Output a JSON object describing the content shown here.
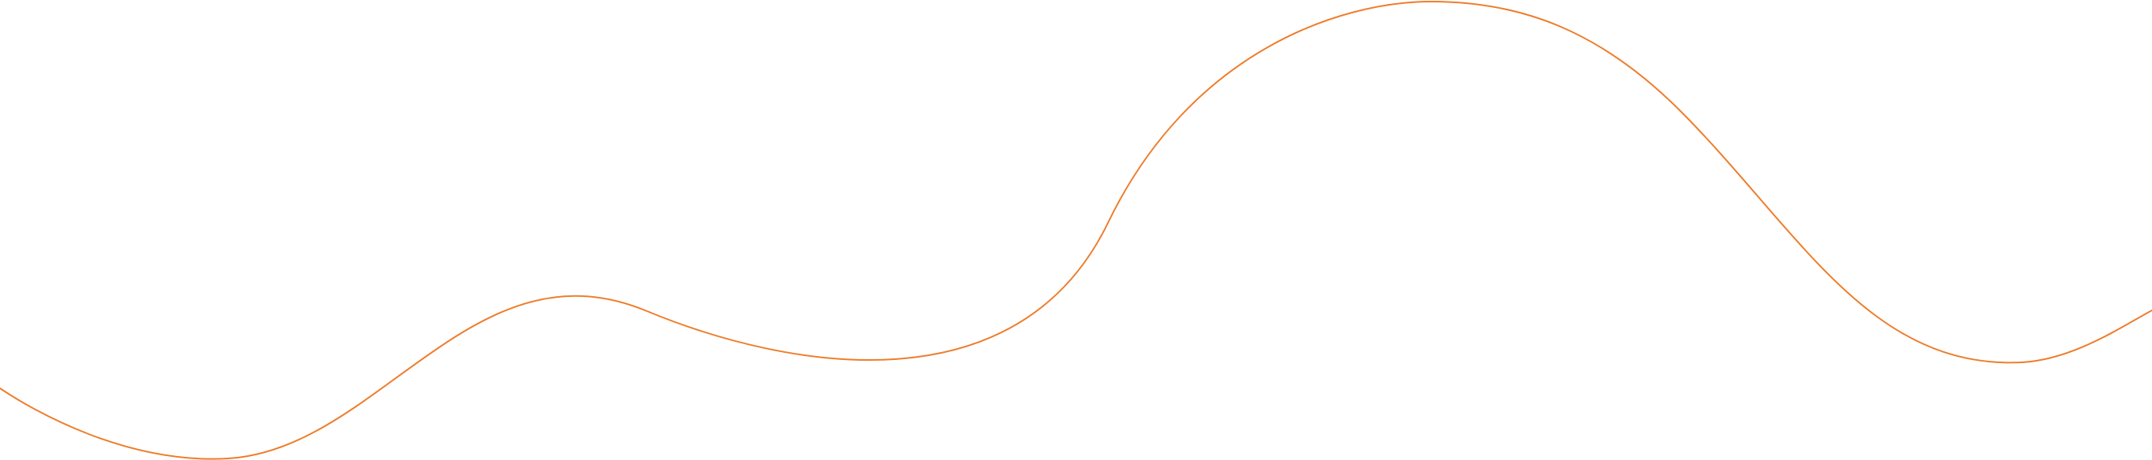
{
  "wave": {
    "stroke_color": "#EE7D2C",
    "background_color": "#FFFFFF"
  }
}
